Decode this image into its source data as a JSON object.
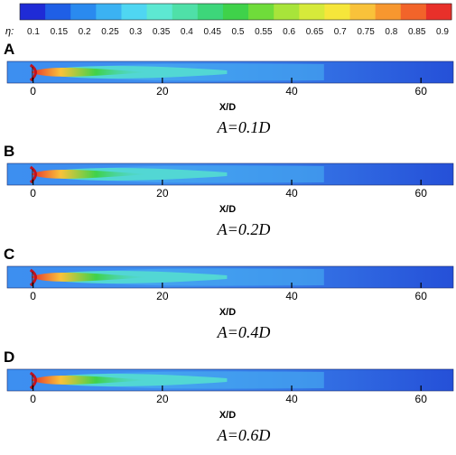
{
  "colorbar": {
    "symbol": "η:",
    "ticks": [
      "0.1",
      "0.15",
      "0.2",
      "0.25",
      "0.3",
      "0.35",
      "0.4",
      "0.45",
      "0.5",
      "0.55",
      "0.6",
      "0.65",
      "0.7",
      "0.75",
      "0.8",
      "0.85",
      "0.9"
    ],
    "colors": [
      "#1f2bd6",
      "#1f5fe6",
      "#2a8aef",
      "#3bb2f3",
      "#4fd6f2",
      "#5de8d2",
      "#4fe0a8",
      "#3dd67a",
      "#3fd24a",
      "#6fdc3a",
      "#a8e43a",
      "#d6ea3a",
      "#f6e63a",
      "#f9c23a",
      "#f7972f",
      "#f2642a",
      "#e8302a"
    ]
  },
  "chart_data": {
    "type": "heatmap",
    "colorbar_label": "η",
    "colorbar_range": [
      0.1,
      0.9
    ],
    "xlabel": "X/D",
    "xlim": [
      -4,
      65
    ],
    "xticks": [
      0,
      20,
      40,
      60
    ],
    "panels": [
      {
        "panel": "A",
        "caption": "A=0.1D"
      },
      {
        "panel": "B",
        "caption": "A=0.2D"
      },
      {
        "panel": "C",
        "caption": "A=0.4D"
      },
      {
        "panel": "D",
        "caption": "A=0.6D"
      }
    ]
  }
}
